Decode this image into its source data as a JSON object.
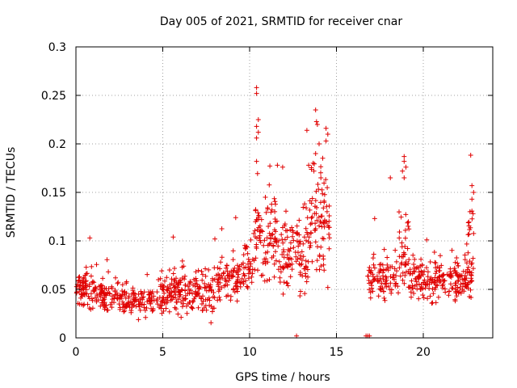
{
  "chart_data": {
    "type": "scatter",
    "title": "Day 005 of 2021, SRMTID for receiver cnar",
    "xlabel": "GPS time / hours",
    "ylabel": "SRMTID / TECUs",
    "xlim": [
      0,
      24
    ],
    "ylim": [
      0,
      0.3
    ],
    "x_ticks": [
      0,
      5,
      10,
      15,
      20
    ],
    "x_tick_labels": [
      "0",
      "5",
      "10",
      "15",
      "20"
    ],
    "y_ticks": [
      0,
      0.05,
      0.1,
      0.15,
      0.2,
      0.25,
      0.3
    ],
    "y_tick_labels": [
      "0",
      "0.05",
      "0.1",
      "0.15",
      "0.2",
      "0.25",
      "0.3"
    ],
    "grid": true,
    "marker": "plus",
    "series": [
      {
        "name": "SRMTID",
        "color": "#e00000",
        "segments": [
          {
            "x_start": 0.0,
            "x_end": 0.9,
            "mean": 0.048,
            "spread": 0.016,
            "count": 60
          },
          {
            "x_start": 0.9,
            "x_end": 2.5,
            "mean": 0.045,
            "spread": 0.012,
            "count": 90
          },
          {
            "x_start": 2.5,
            "x_end": 4.5,
            "mean": 0.037,
            "spread": 0.01,
            "count": 110
          },
          {
            "x_start": 4.5,
            "x_end": 6.5,
            "mean": 0.047,
            "spread": 0.016,
            "count": 120
          },
          {
            "x_start": 6.5,
            "x_end": 8.0,
            "mean": 0.046,
            "spread": 0.016,
            "count": 90
          },
          {
            "x_start": 8.0,
            "x_end": 9.5,
            "mean": 0.058,
            "spread": 0.016,
            "count": 80
          },
          {
            "x_start": 9.5,
            "x_end": 10.2,
            "mean": 0.07,
            "spread": 0.018,
            "count": 40
          },
          {
            "x_start": 10.2,
            "x_end": 11.5,
            "mean": 0.105,
            "spread": 0.03,
            "count": 90
          },
          {
            "x_start": 11.5,
            "x_end": 12.5,
            "mean": 0.085,
            "spread": 0.028,
            "count": 60
          },
          {
            "x_start": 12.5,
            "x_end": 13.5,
            "mean": 0.088,
            "spread": 0.03,
            "count": 60
          },
          {
            "x_start": 13.5,
            "x_end": 14.6,
            "mean": 0.12,
            "spread": 0.04,
            "count": 80
          },
          {
            "x_start": 16.8,
            "x_end": 18.6,
            "mean": 0.062,
            "spread": 0.016,
            "count": 90
          },
          {
            "x_start": 18.6,
            "x_end": 19.2,
            "mean": 0.09,
            "spread": 0.035,
            "count": 40
          },
          {
            "x_start": 19.2,
            "x_end": 21.5,
            "mean": 0.058,
            "spread": 0.014,
            "count": 130
          },
          {
            "x_start": 21.5,
            "x_end": 22.8,
            "mean": 0.062,
            "spread": 0.015,
            "count": 90
          },
          {
            "x_start": 22.5,
            "x_end": 22.9,
            "mean": 0.1,
            "spread": 0.03,
            "count": 20
          }
        ],
        "highlights": [
          {
            "x": 10.4,
            "y": 0.258
          },
          {
            "x": 10.4,
            "y": 0.252
          },
          {
            "x": 10.5,
            "y": 0.225
          },
          {
            "x": 10.4,
            "y": 0.218
          },
          {
            "x": 10.5,
            "y": 0.212
          },
          {
            "x": 10.4,
            "y": 0.206
          },
          {
            "x": 10.4,
            "y": 0.182
          },
          {
            "x": 11.6,
            "y": 0.178
          },
          {
            "x": 11.9,
            "y": 0.176
          },
          {
            "x": 13.8,
            "y": 0.235
          },
          {
            "x": 13.9,
            "y": 0.22
          },
          {
            "x": 13.3,
            "y": 0.214
          },
          {
            "x": 14.4,
            "y": 0.216
          },
          {
            "x": 14.5,
            "y": 0.21
          },
          {
            "x": 14.4,
            "y": 0.203
          },
          {
            "x": 14.0,
            "y": 0.2
          },
          {
            "x": 13.8,
            "y": 0.19
          },
          {
            "x": 13.4,
            "y": 0.178
          },
          {
            "x": 13.7,
            "y": 0.172
          },
          {
            "x": 14.1,
            "y": 0.165
          },
          {
            "x": 18.9,
            "y": 0.187
          },
          {
            "x": 18.9,
            "y": 0.182
          },
          {
            "x": 19.0,
            "y": 0.176
          },
          {
            "x": 18.8,
            "y": 0.172
          },
          {
            "x": 18.9,
            "y": 0.165
          },
          {
            "x": 18.1,
            "y": 0.165
          },
          {
            "x": 22.8,
            "y": 0.157
          },
          {
            "x": 22.9,
            "y": 0.15
          },
          {
            "x": 22.8,
            "y": 0.143
          },
          {
            "x": 0.8,
            "y": 0.103
          },
          {
            "x": 5.6,
            "y": 0.104
          },
          {
            "x": 9.2,
            "y": 0.124
          },
          {
            "x": 8.0,
            "y": 0.102
          },
          {
            "x": 17.2,
            "y": 0.123
          },
          {
            "x": 20.2,
            "y": 0.101
          },
          {
            "x": 14.5,
            "y": 0.052
          },
          {
            "x": 12.7,
            "y": 0.002
          },
          {
            "x": 16.7,
            "y": 0.002
          },
          {
            "x": 16.8,
            "y": 0.002
          },
          {
            "x": 16.9,
            "y": 0.002
          }
        ]
      }
    ]
  }
}
